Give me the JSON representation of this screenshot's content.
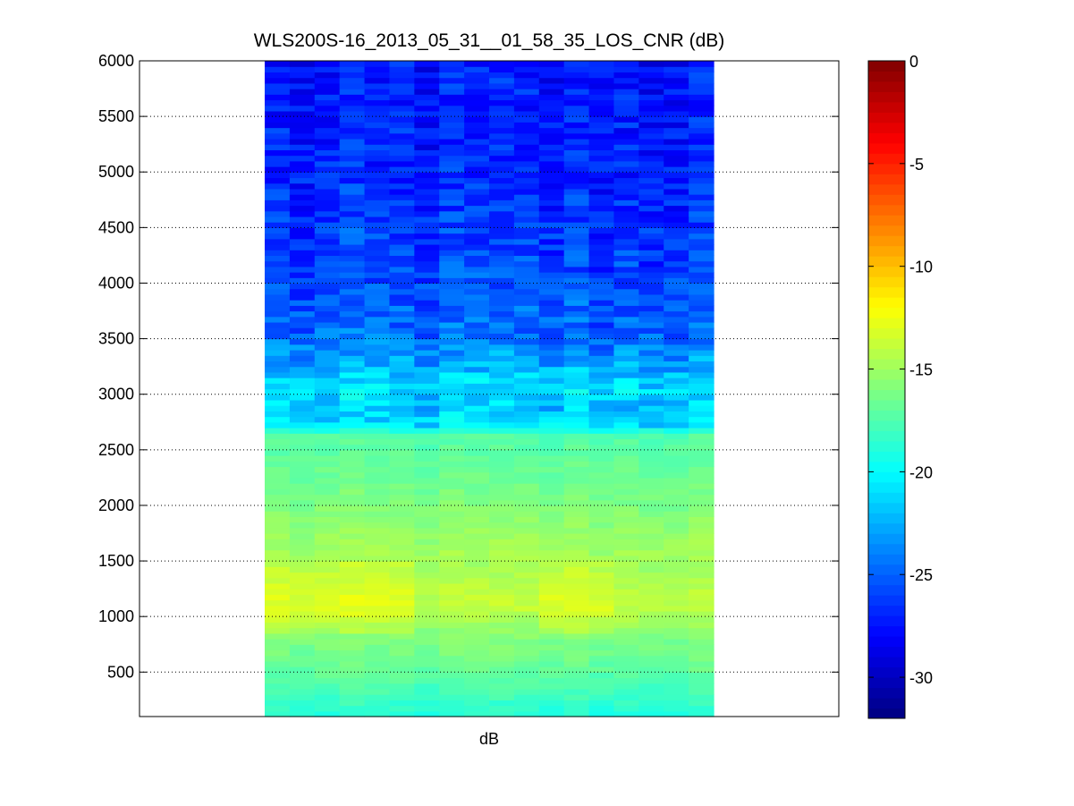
{
  "chart_data": {
    "type": "heatmap",
    "title": "WLS200S-16_2013_05_31__01_58_35_LOS_CNR (dB)",
    "xlabel": "dB",
    "ylabel": "",
    "ylim": [
      100,
      6000
    ],
    "yticks": [
      500,
      1000,
      1500,
      2000,
      2500,
      3000,
      3500,
      4000,
      4500,
      5000,
      5500,
      6000
    ],
    "grid": "horizontal dotted",
    "colormap": "jet",
    "colorbar": {
      "range": [
        -32,
        0
      ],
      "ticks": [
        0,
        -5,
        -10,
        -15,
        -20,
        -25,
        -30
      ]
    },
    "columns": 18,
    "rows_per_block": 50,
    "profile": [
      {
        "range_m": 100,
        "cnr_db": -19.0
      },
      {
        "range_m": 300,
        "cnr_db": -18.0
      },
      {
        "range_m": 500,
        "cnr_db": -17.0
      },
      {
        "range_m": 800,
        "cnr_db": -16.0
      },
      {
        "range_m": 1100,
        "cnr_db": -13.5
      },
      {
        "range_m": 1400,
        "cnr_db": -14.5
      },
      {
        "range_m": 1800,
        "cnr_db": -15.5
      },
      {
        "range_m": 2200,
        "cnr_db": -16.5
      },
      {
        "range_m": 2650,
        "cnr_db": -17.5
      },
      {
        "range_m": 2700,
        "cnr_db": -20.5
      },
      {
        "range_m": 2850,
        "cnr_db": -22.0
      },
      {
        "range_m": 3050,
        "cnr_db": -21.0
      },
      {
        "range_m": 3300,
        "cnr_db": -23.0
      },
      {
        "range_m": 3600,
        "cnr_db": -25.0
      },
      {
        "range_m": 4200,
        "cnr_db": -26.0
      },
      {
        "range_m": 5000,
        "cnr_db": -27.0
      },
      {
        "range_m": 6000,
        "cnr_db": -27.5
      }
    ]
  }
}
